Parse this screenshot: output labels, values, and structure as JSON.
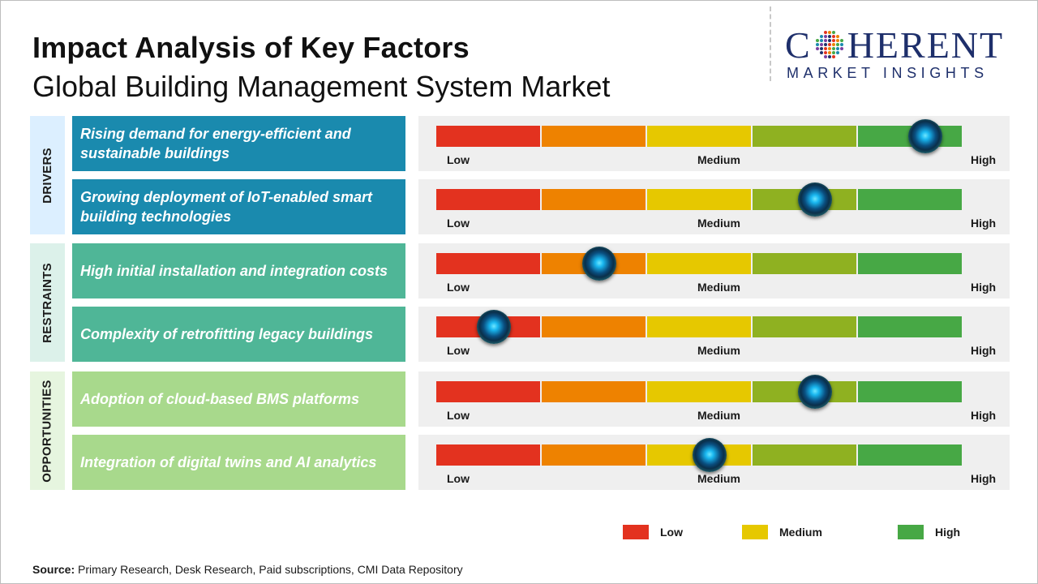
{
  "title": "Impact Analysis of Key Factors",
  "subtitle": "Global Building Management System Market",
  "logo": {
    "name": "COHERENT",
    "tagline": "MARKET INSIGHTS"
  },
  "colors": {
    "low_red": "#e3321f",
    "orange": "#ee8200",
    "medium_yellow": "#e6c800",
    "olive_green": "#8fb121",
    "high_green": "#47a845",
    "drivers_box": "#1a8aae",
    "restraints_box": "#4fb697",
    "opportunities_box": "#a8d98c",
    "drivers_label_bg": "#dcefff",
    "restraints_label_bg": "#dcf1ea",
    "opportunities_label_bg": "#e6f5df"
  },
  "chart_data": {
    "type": "table",
    "scale_labels": [
      "Low",
      "Medium",
      "High"
    ],
    "scale_segments": 5,
    "categories": [
      {
        "name": "DRIVERS",
        "factors": [
          {
            "text": "Rising demand for energy-efficient and sustainable buildings",
            "impact": 0.93
          },
          {
            "text": "Growing deployment of IoT-enabled smart building technologies",
            "impact": 0.72
          }
        ]
      },
      {
        "name": "RESTRAINTS",
        "factors": [
          {
            "text": "High initial installation and integration costs",
            "impact": 0.31
          },
          {
            "text": "Complexity of retrofitting legacy buildings",
            "impact": 0.11
          }
        ]
      },
      {
        "name": "OPPORTUNITIES",
        "factors": [
          {
            "text": "Adoption of cloud-based BMS platforms",
            "impact": 0.72
          },
          {
            "text": "Integration of digital twins and AI analytics",
            "impact": 0.52
          }
        ]
      }
    ],
    "legend": [
      {
        "label": "Low",
        "color": "#e3321f"
      },
      {
        "label": "Medium",
        "color": "#e6c800"
      },
      {
        "label": "High",
        "color": "#47a845"
      }
    ]
  },
  "source": {
    "label": "Source:",
    "text": " Primary Research, Desk Research, Paid subscriptions, CMI Data Repository"
  }
}
